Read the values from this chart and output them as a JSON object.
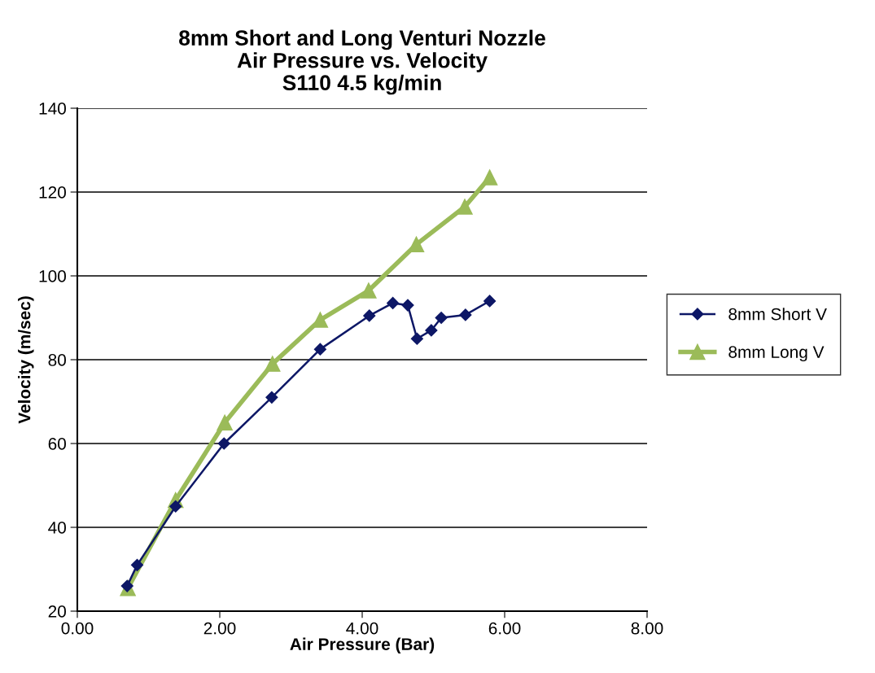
{
  "chart_data": {
    "type": "line",
    "title": "8mm Short and Long Venturi Nozzle\nAir Pressure vs. Velocity\nS110 4.5 kg/min",
    "xlabel": "Air Pressure (Bar)",
    "ylabel": "Velocity (m/sec)",
    "xlim": [
      0,
      8
    ],
    "xticks": [
      {
        "value": 0,
        "label": "0.00"
      },
      {
        "value": 2,
        "label": "2.00"
      },
      {
        "value": 4,
        "label": "4.00"
      },
      {
        "value": 6,
        "label": "6.00"
      },
      {
        "value": 8,
        "label": "8.00"
      }
    ],
    "ylim": [
      20,
      140
    ],
    "yticks": [
      20,
      40,
      60,
      80,
      100,
      120,
      140
    ],
    "grid": "y",
    "legend": "right",
    "series": [
      {
        "name": "8mm Short V",
        "color": "#0d1766",
        "marker": "diamond",
        "x": [
          0.7,
          0.84,
          1.38,
          2.06,
          2.73,
          3.41,
          4.1,
          4.43,
          4.64,
          4.77,
          4.97,
          5.11,
          5.45,
          5.79
        ],
        "values": [
          26,
          31,
          45,
          60,
          71,
          82.5,
          90.5,
          93.5,
          93,
          85,
          87,
          90,
          90.7,
          94
        ]
      },
      {
        "name": "8mm Long V",
        "color": "#9bbb59",
        "marker": "triangle",
        "x": [
          0.71,
          1.38,
          2.07,
          2.74,
          3.41,
          4.09,
          4.76,
          5.44,
          5.79
        ],
        "values": [
          25.5,
          46.5,
          65,
          79,
          89.5,
          96.5,
          107.5,
          116.5,
          123.5
        ]
      }
    ]
  }
}
